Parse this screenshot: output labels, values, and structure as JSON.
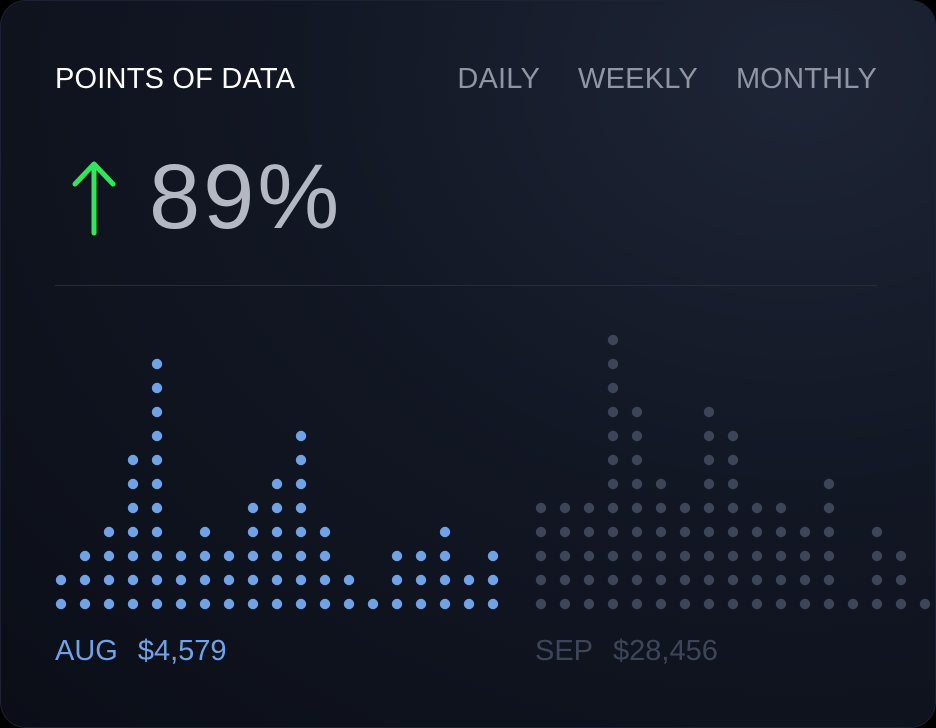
{
  "header": {
    "title": "POINTS OF DATA",
    "tabs": [
      "DAILY",
      "WEEKLY",
      "MONTHLY"
    ]
  },
  "kpi": {
    "direction_icon": "arrow-up-icon",
    "value": "89%",
    "arrow_color": "#2ee85a"
  },
  "months": [
    {
      "name": "AUG",
      "amount": "$4,579",
      "color": "#6fa2e6"
    },
    {
      "name": "SEP",
      "amount": "$28,456",
      "color": "#3d4658"
    }
  ],
  "chart_data": {
    "type": "bar",
    "series": [
      {
        "name": "AUG",
        "values": [
          2,
          3,
          4,
          7,
          11,
          3,
          4,
          3,
          5,
          6,
          8,
          4,
          2,
          1,
          3,
          3,
          4,
          2,
          3
        ]
      },
      {
        "name": "SEP",
        "values": [
          5,
          5,
          5,
          12,
          9,
          6,
          5,
          9,
          8,
          5,
          5,
          4,
          6,
          1,
          4,
          3,
          1
        ]
      }
    ]
  }
}
